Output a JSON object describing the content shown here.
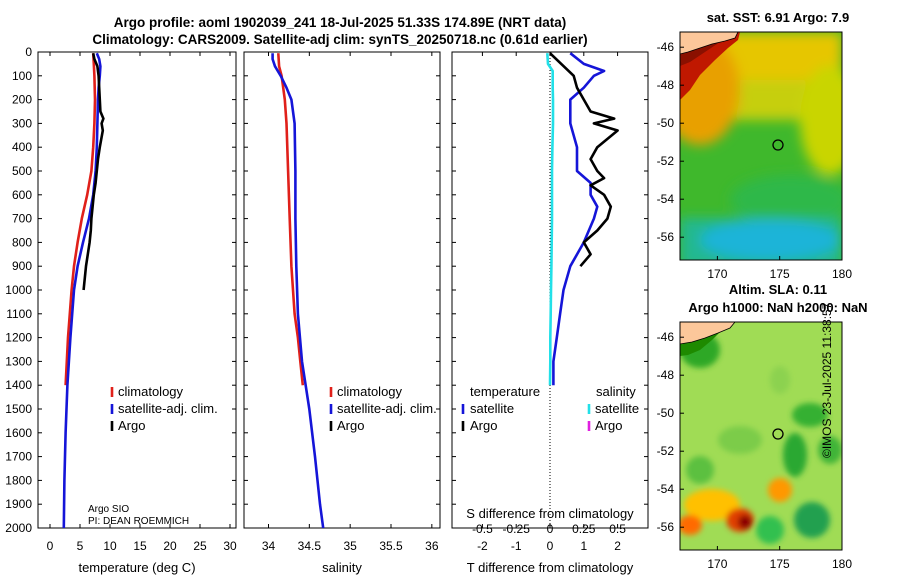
{
  "titles": {
    "line1": "Argo profile: aoml 1902039_241 18-Jul-2025 51.33S 174.89E (NRT data)",
    "line2": "Climatology: CARS2009. Satellite-adj clim: synTS_20250718.nc (0.61d earlier)"
  },
  "copyright": "©IMOS 23-Jul-2025 11:38:57",
  "colors": {
    "clim": "#e0201a",
    "sat": "#1515d8",
    "argo": "#000000",
    "sat_s": "#22e0e8",
    "argo_s": "#e020e0"
  },
  "chart_data": [
    {
      "type": "line",
      "id": "temperature",
      "xlabel": "temperature (deg C)",
      "xlim": [
        -2,
        31
      ],
      "ylim": [
        2000,
        0
      ],
      "xticks": [
        "0",
        "5",
        "10",
        "15",
        "20",
        "25",
        "30"
      ],
      "yticks": [
        "0",
        "100",
        "200",
        "300",
        "400",
        "500",
        "600",
        "700",
        "800",
        "900",
        "1000",
        "1100",
        "1200",
        "1300",
        "1400",
        "1500",
        "1600",
        "1700",
        "1800",
        "1900",
        "2000"
      ],
      "legend": [
        "climatology",
        "satellite-adj. clim.",
        "Argo"
      ],
      "annotation": [
        "Argo SIO",
        "PI: DEAN ROEMMICH"
      ],
      "series": [
        {
          "name": "climatology",
          "depth": [
            5,
            50,
            100,
            200,
            300,
            400,
            500,
            600,
            700,
            800,
            900,
            1000,
            1100,
            1200,
            1300,
            1400
          ],
          "values": [
            7.2,
            7.3,
            7.4,
            7.5,
            7.4,
            7.2,
            6.9,
            6.2,
            5.3,
            4.6,
            4.0,
            3.6,
            3.3,
            3.0,
            2.8,
            2.6
          ]
        },
        {
          "name": "satellite-adj. clim.",
          "depth": [
            5,
            30,
            60,
            100,
            150,
            200,
            300,
            400,
            500,
            600,
            700,
            800,
            900,
            1000,
            1200,
            1400,
            1600,
            1800,
            2000
          ],
          "values": [
            7.8,
            8.2,
            8.4,
            8.3,
            8.1,
            8.0,
            7.9,
            7.8,
            7.6,
            7.2,
            6.5,
            5.5,
            4.6,
            4.0,
            3.4,
            2.9,
            2.6,
            2.4,
            2.3
          ]
        },
        {
          "name": "Argo",
          "depth": [
            5,
            30,
            60,
            100,
            150,
            200,
            250,
            280,
            300,
            330,
            400,
            450,
            500,
            550,
            600,
            650,
            700,
            750,
            800,
            900,
            1000
          ],
          "values": [
            7.2,
            7.4,
            7.9,
            8.1,
            8.2,
            8.3,
            8.4,
            8.9,
            8.6,
            8.8,
            8.3,
            8.0,
            7.8,
            7.6,
            7.3,
            7.1,
            6.9,
            6.8,
            6.6,
            6.0,
            5.6
          ]
        }
      ]
    },
    {
      "type": "line",
      "id": "salinity",
      "xlabel": "salinity",
      "xlim": [
        33.7,
        36.1
      ],
      "ylim": [
        2000,
        0
      ],
      "xticks": [
        "34",
        "34.5",
        "35",
        "35.5",
        "36"
      ],
      "legend": [
        "climatology",
        "satellite-adj. clim.",
        "Argo"
      ],
      "series": [
        {
          "name": "climatology",
          "depth": [
            5,
            60,
            100,
            200,
            300,
            500,
            700,
            900,
            1100,
            1200,
            1300,
            1400
          ],
          "values": [
            34.12,
            34.13,
            34.16,
            34.2,
            34.22,
            34.24,
            34.26,
            34.28,
            34.32,
            34.36,
            34.39,
            34.42
          ]
        },
        {
          "name": "satellite-adj. clim.",
          "depth": [
            5,
            30,
            60,
            100,
            150,
            200,
            300,
            500,
            700,
            900,
            1100,
            1300,
            1500,
            1700,
            1900,
            2000
          ],
          "values": [
            34.05,
            34.05,
            34.08,
            34.15,
            34.22,
            34.28,
            34.32,
            34.33,
            34.33,
            34.34,
            34.36,
            34.41,
            34.5,
            34.57,
            34.63,
            34.67
          ]
        }
      ]
    },
    {
      "type": "line",
      "id": "difference",
      "xlabel": "T difference from climatology",
      "xlabel_top": "S difference from climatology",
      "xlim": [
        -2.9,
        2.9
      ],
      "ylim": [
        2000,
        0
      ],
      "xticks": [
        "-2",
        "-1",
        "0",
        "1",
        "2"
      ],
      "xticks_top": [
        "-0.5",
        "-0.25",
        "0",
        "0.25",
        "0.5"
      ],
      "legend_left_title": "temperature",
      "legend_right_title": "salinity",
      "legend_left": [
        "satellite",
        "Argo"
      ],
      "legend_right": [
        "satellite",
        "Argo"
      ],
      "series": [
        {
          "name": "temperature satellite",
          "depth": [
            5,
            50,
            80,
            100,
            150,
            200,
            300,
            400,
            500,
            550,
            600,
            650,
            700,
            800,
            900,
            1000,
            1100,
            1200,
            1300,
            1400
          ],
          "values": [
            0.6,
            1.0,
            1.6,
            1.3,
            1.0,
            0.6,
            0.6,
            0.8,
            0.8,
            1.2,
            1.2,
            1.4,
            1.3,
            1.0,
            0.6,
            0.4,
            0.3,
            0.2,
            0.1,
            0.1
          ]
        },
        {
          "name": "temperature Argo",
          "depth": [
            5,
            100,
            150,
            200,
            250,
            280,
            300,
            330,
            400,
            450,
            500,
            530,
            560,
            600,
            650,
            700,
            750,
            800,
            850,
            900
          ],
          "values": [
            0,
            0.7,
            0.8,
            1.0,
            1.2,
            1.9,
            1.3,
            2.0,
            1.4,
            1.2,
            1.4,
            1.6,
            1.2,
            1.6,
            1.8,
            1.7,
            1.4,
            1.0,
            1.2,
            0.9
          ]
        },
        {
          "name": "salinity satellite",
          "depth": [
            5,
            50,
            80,
            100,
            150,
            200,
            300,
            400,
            500,
            600,
            700,
            800,
            900,
            1000,
            1100,
            1200,
            1300,
            1400
          ],
          "values": [
            -0.08,
            -0.06,
            0.08,
            0.08,
            0.08,
            0.09,
            0.09,
            0.07,
            0.06,
            0.06,
            0.06,
            0.05,
            0.04,
            0.03,
            0.02,
            0.01,
            0.01,
            0.0
          ]
        }
      ]
    },
    {
      "type": "heatmap",
      "id": "sst-map",
      "title": "sat. SST: 6.91 Argo: 7.9",
      "xlim": [
        167,
        180
      ],
      "ylim": [
        -57.2,
        -45.2
      ],
      "xticks": [
        "170",
        "175",
        "180"
      ],
      "yticks": [
        "-46",
        "-48",
        "-50",
        "-52",
        "-54",
        "-56"
      ],
      "marker": {
        "lon": 174.89,
        "lat": -51.33
      }
    },
    {
      "type": "heatmap",
      "id": "sla-map",
      "title_line1": "Altim. SLA: 0.11",
      "title_line2": "Argo h1000: NaN h2000: NaN",
      "xlim": [
        167,
        180
      ],
      "ylim": [
        -57.2,
        -45.2
      ],
      "xticks": [
        "170",
        "175",
        "180"
      ],
      "yticks": [
        "-46",
        "-48",
        "-50",
        "-52",
        "-54",
        "-56"
      ],
      "marker": {
        "lon": 174.89,
        "lat": -51.33
      }
    }
  ]
}
